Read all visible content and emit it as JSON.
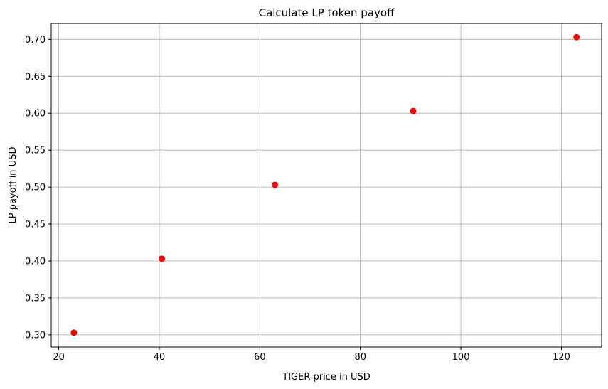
{
  "chart_data": {
    "type": "scatter",
    "title": "Calculate LP token payoff",
    "xlabel": "TIGER price in USD",
    "ylabel": "LP payoff in USD",
    "x_ticks": [
      20,
      40,
      60,
      80,
      100,
      120
    ],
    "y_ticks": [
      0.3,
      0.35,
      0.4,
      0.45,
      0.5,
      0.55,
      0.6,
      0.65,
      0.7
    ],
    "xlim": [
      18.5,
      128
    ],
    "ylim": [
      0.2835,
      0.7215
    ],
    "grid": true,
    "series": [
      {
        "color": "#ff0000",
        "x": [
          23,
          40.5,
          63,
          90.5,
          123
        ],
        "y": [
          0.303,
          0.403,
          0.503,
          0.603,
          0.703
        ]
      }
    ]
  },
  "colors": {
    "background": "#ffffff",
    "grid": "#b0b0b0",
    "axis": "#000000",
    "marker": "#ff0000"
  }
}
